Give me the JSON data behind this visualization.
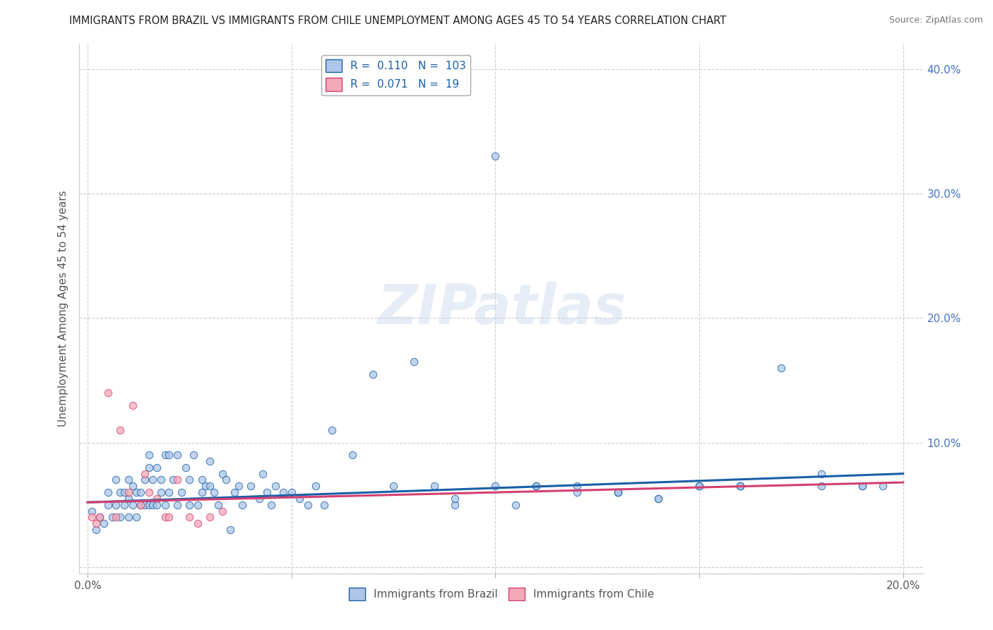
{
  "title": "IMMIGRANTS FROM BRAZIL VS IMMIGRANTS FROM CHILE UNEMPLOYMENT AMONG AGES 45 TO 54 YEARS CORRELATION CHART",
  "source": "Source: ZipAtlas.com",
  "ylabel_label": "Unemployment Among Ages 45 to 54 years",
  "xlim": [
    -0.002,
    0.205
  ],
  "ylim": [
    -0.005,
    0.42
  ],
  "xticks": [
    0.0,
    0.05,
    0.1,
    0.15,
    0.2
  ],
  "yticks": [
    0.0,
    0.1,
    0.2,
    0.3,
    0.4
  ],
  "brazil_color": "#aec6e8",
  "chile_color": "#f4a9b8",
  "brazil_line_color": "#1a5fa8",
  "chile_line_color": "#d44070",
  "brazil_R": 0.11,
  "brazil_N": 103,
  "chile_R": 0.071,
  "chile_N": 19,
  "watermark": "ZIPatlas",
  "legend_brazil": "Immigrants from Brazil",
  "legend_chile": "Immigrants from Chile",
  "brazil_scatter_x": [
    0.001,
    0.002,
    0.003,
    0.004,
    0.005,
    0.005,
    0.006,
    0.007,
    0.007,
    0.008,
    0.008,
    0.009,
    0.009,
    0.01,
    0.01,
    0.01,
    0.011,
    0.011,
    0.012,
    0.012,
    0.013,
    0.013,
    0.014,
    0.014,
    0.015,
    0.015,
    0.015,
    0.016,
    0.016,
    0.017,
    0.017,
    0.018,
    0.018,
    0.019,
    0.019,
    0.02,
    0.02,
    0.021,
    0.022,
    0.022,
    0.023,
    0.024,
    0.025,
    0.025,
    0.026,
    0.027,
    0.028,
    0.028,
    0.029,
    0.03,
    0.03,
    0.031,
    0.032,
    0.033,
    0.034,
    0.035,
    0.036,
    0.037,
    0.038,
    0.04,
    0.042,
    0.043,
    0.044,
    0.045,
    0.046,
    0.048,
    0.05,
    0.052,
    0.054,
    0.056,
    0.058,
    0.06,
    0.065,
    0.07,
    0.075,
    0.08,
    0.085,
    0.09,
    0.1,
    0.105,
    0.11,
    0.12,
    0.13,
    0.14,
    0.15,
    0.16,
    0.17,
    0.18,
    0.19,
    0.195,
    0.1,
    0.12,
    0.13,
    0.15,
    0.16,
    0.18,
    0.09,
    0.11,
    0.13,
    0.14,
    0.15,
    0.16,
    0.19
  ],
  "brazil_scatter_y": [
    0.045,
    0.03,
    0.04,
    0.035,
    0.05,
    0.06,
    0.04,
    0.05,
    0.07,
    0.04,
    0.06,
    0.05,
    0.06,
    0.04,
    0.055,
    0.07,
    0.05,
    0.065,
    0.04,
    0.06,
    0.05,
    0.06,
    0.05,
    0.07,
    0.05,
    0.08,
    0.09,
    0.05,
    0.07,
    0.05,
    0.08,
    0.06,
    0.07,
    0.05,
    0.09,
    0.06,
    0.09,
    0.07,
    0.05,
    0.09,
    0.06,
    0.08,
    0.07,
    0.05,
    0.09,
    0.05,
    0.07,
    0.06,
    0.065,
    0.065,
    0.085,
    0.06,
    0.05,
    0.075,
    0.07,
    0.03,
    0.06,
    0.065,
    0.05,
    0.065,
    0.055,
    0.075,
    0.06,
    0.05,
    0.065,
    0.06,
    0.06,
    0.055,
    0.05,
    0.065,
    0.05,
    0.11,
    0.09,
    0.155,
    0.065,
    0.165,
    0.065,
    0.05,
    0.33,
    0.05,
    0.065,
    0.06,
    0.06,
    0.055,
    0.065,
    0.065,
    0.16,
    0.065,
    0.065,
    0.065,
    0.065,
    0.065,
    0.06,
    0.065,
    0.065,
    0.075,
    0.055,
    0.065,
    0.06,
    0.055,
    0.065,
    0.065,
    0.065
  ],
  "chile_scatter_x": [
    0.001,
    0.002,
    0.003,
    0.005,
    0.007,
    0.008,
    0.01,
    0.011,
    0.013,
    0.014,
    0.015,
    0.017,
    0.019,
    0.02,
    0.022,
    0.025,
    0.027,
    0.03,
    0.033
  ],
  "chile_scatter_y": [
    0.04,
    0.035,
    0.04,
    0.14,
    0.04,
    0.11,
    0.06,
    0.13,
    0.05,
    0.075,
    0.06,
    0.055,
    0.04,
    0.04,
    0.07,
    0.04,
    0.035,
    0.04,
    0.045
  ],
  "background_color": "#ffffff",
  "grid_color": "#cccccc",
  "brazil_trend_x": [
    0.0,
    0.2
  ],
  "brazil_trend_y": [
    0.052,
    0.075
  ],
  "chile_trend_x": [
    0.0,
    0.2
  ],
  "chile_trend_y": [
    0.052,
    0.068
  ]
}
